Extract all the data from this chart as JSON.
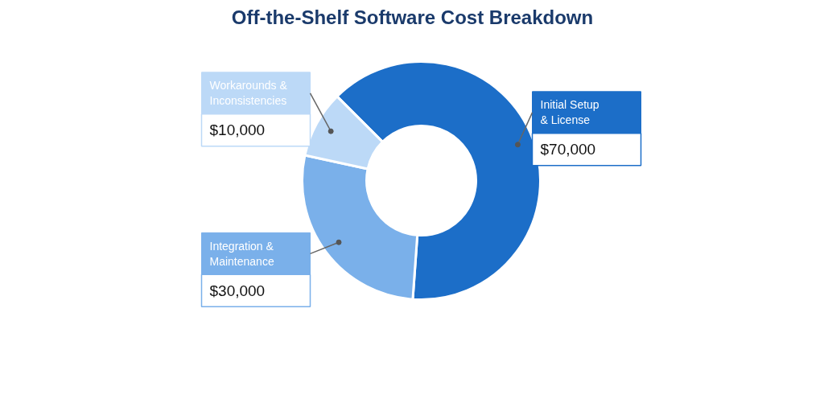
{
  "chart_data": {
    "type": "donut",
    "title": "Off-the-Shelf Software Cost Breakdown",
    "categories": [
      "Initial Setup\n& License",
      "Integration &\nMaintenance",
      "Workarounds &\nInconsistencies"
    ],
    "values": [
      70000,
      30000,
      10000
    ],
    "colors": [
      "#1c6ec8",
      "#7ab0ea",
      "#bcd9f7"
    ],
    "value_labels": [
      "$70,000",
      "$30,000",
      "$10,000"
    ]
  }
}
